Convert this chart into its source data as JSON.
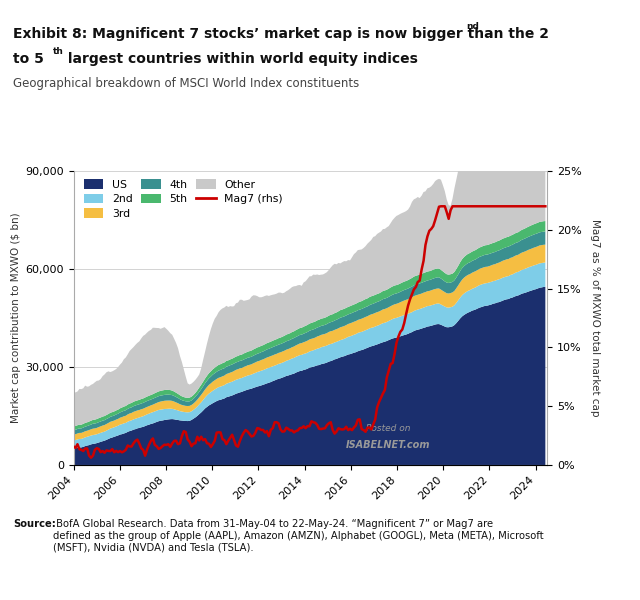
{
  "title_line1": "Exhibit 8: Magnificent 7 stocks’ market cap is now bigger than the 2",
  "title_sup1": "nd",
  "title_line2_pre": "to 5",
  "title_sup2": "th",
  "title_line2_post": " largest countries within world equity indices",
  "subtitle": "Geographical breakdown of MSCI World Index constituents",
  "ylabel_left": "Market cap contribution to MXWO ($ bn)",
  "ylabel_right": "Mag7 as % of MXWO total market cap",
  "source_bold": "Source:",
  "source_rest": " BofA Global Research. Data from 31-May-04 to 22-May-24. “Magnificent 7” or Mag7 are\ndefined as the group of Apple (AAPL), Amazon (AMZN), Alphabet (GOOGL), Meta (META), Microsoft\n(MSFT), Nvidia (NVDA) and Tesla (TSLA).",
  "colors": {
    "US": "#1b2f6e",
    "2nd": "#7ecde8",
    "3rd": "#f5be42",
    "4th": "#3a9090",
    "5th": "#4ab86e",
    "Other": "#c9c9c9",
    "Mag7": "#cc0000"
  },
  "ylim_left": [
    0,
    90000
  ],
  "ylim_right": [
    0,
    0.25
  ],
  "yticks_left": [
    0,
    30000,
    60000,
    90000
  ],
  "yticks_right": [
    0.0,
    0.05,
    0.1,
    0.15,
    0.2,
    0.25
  ],
  "ytick_labels_left": [
    "0",
    "30,000",
    "60,000",
    "90,000"
  ],
  "ytick_labels_right": [
    "0%",
    "5%",
    "10%",
    "15%",
    "20%",
    "25%"
  ],
  "xticks": [
    2004,
    2006,
    2008,
    2010,
    2012,
    2014,
    2016,
    2018,
    2020,
    2022,
    2024
  ],
  "watermark_line1": "Posted on",
  "watermark_line2": "ISABELNET.com",
  "background_color": "#ffffff",
  "grid_color": "#cccccc"
}
